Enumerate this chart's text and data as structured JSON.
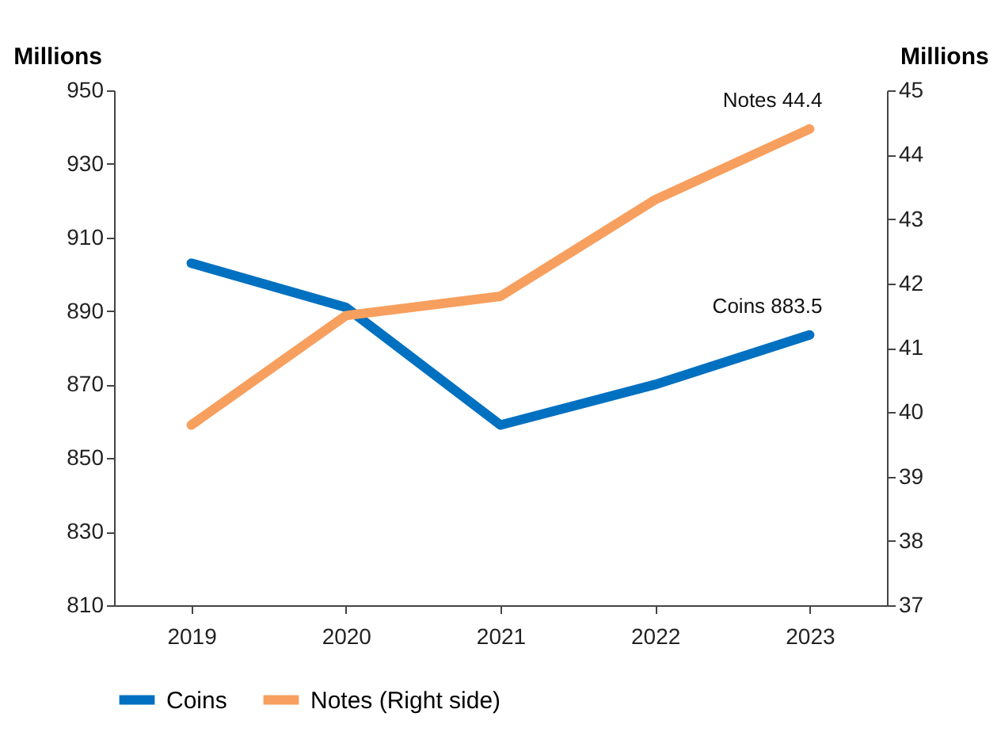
{
  "chart_data": {
    "type": "line",
    "ylabel": "Millions",
    "y2label": "Millions",
    "categories": [
      "2019",
      "2020",
      "2021",
      "2022",
      "2023"
    ],
    "series": [
      {
        "name": "Coins",
        "color": "#0070c0",
        "values": [
          903,
          891,
          859,
          870,
          883.5
        ]
      },
      {
        "name": "Notes (Right side)",
        "color": "#f79f5e",
        "axis": "y2",
        "values": [
          39.8,
          41.5,
          41.8,
          43.3,
          44.4
        ]
      }
    ],
    "ylim": [
      810,
      950
    ],
    "yticks": [
      810,
      830,
      850,
      870,
      890,
      910,
      930,
      950
    ],
    "y2lim": [
      37,
      45
    ],
    "y2ticks": [
      37,
      38,
      39,
      40,
      41,
      42,
      43,
      44,
      45
    ],
    "annotations": [
      "Coins 883.5",
      "Notes 44.4"
    ],
    "legend": "bottom",
    "grid": false,
    "marker": "none",
    "line_style": "solid"
  }
}
